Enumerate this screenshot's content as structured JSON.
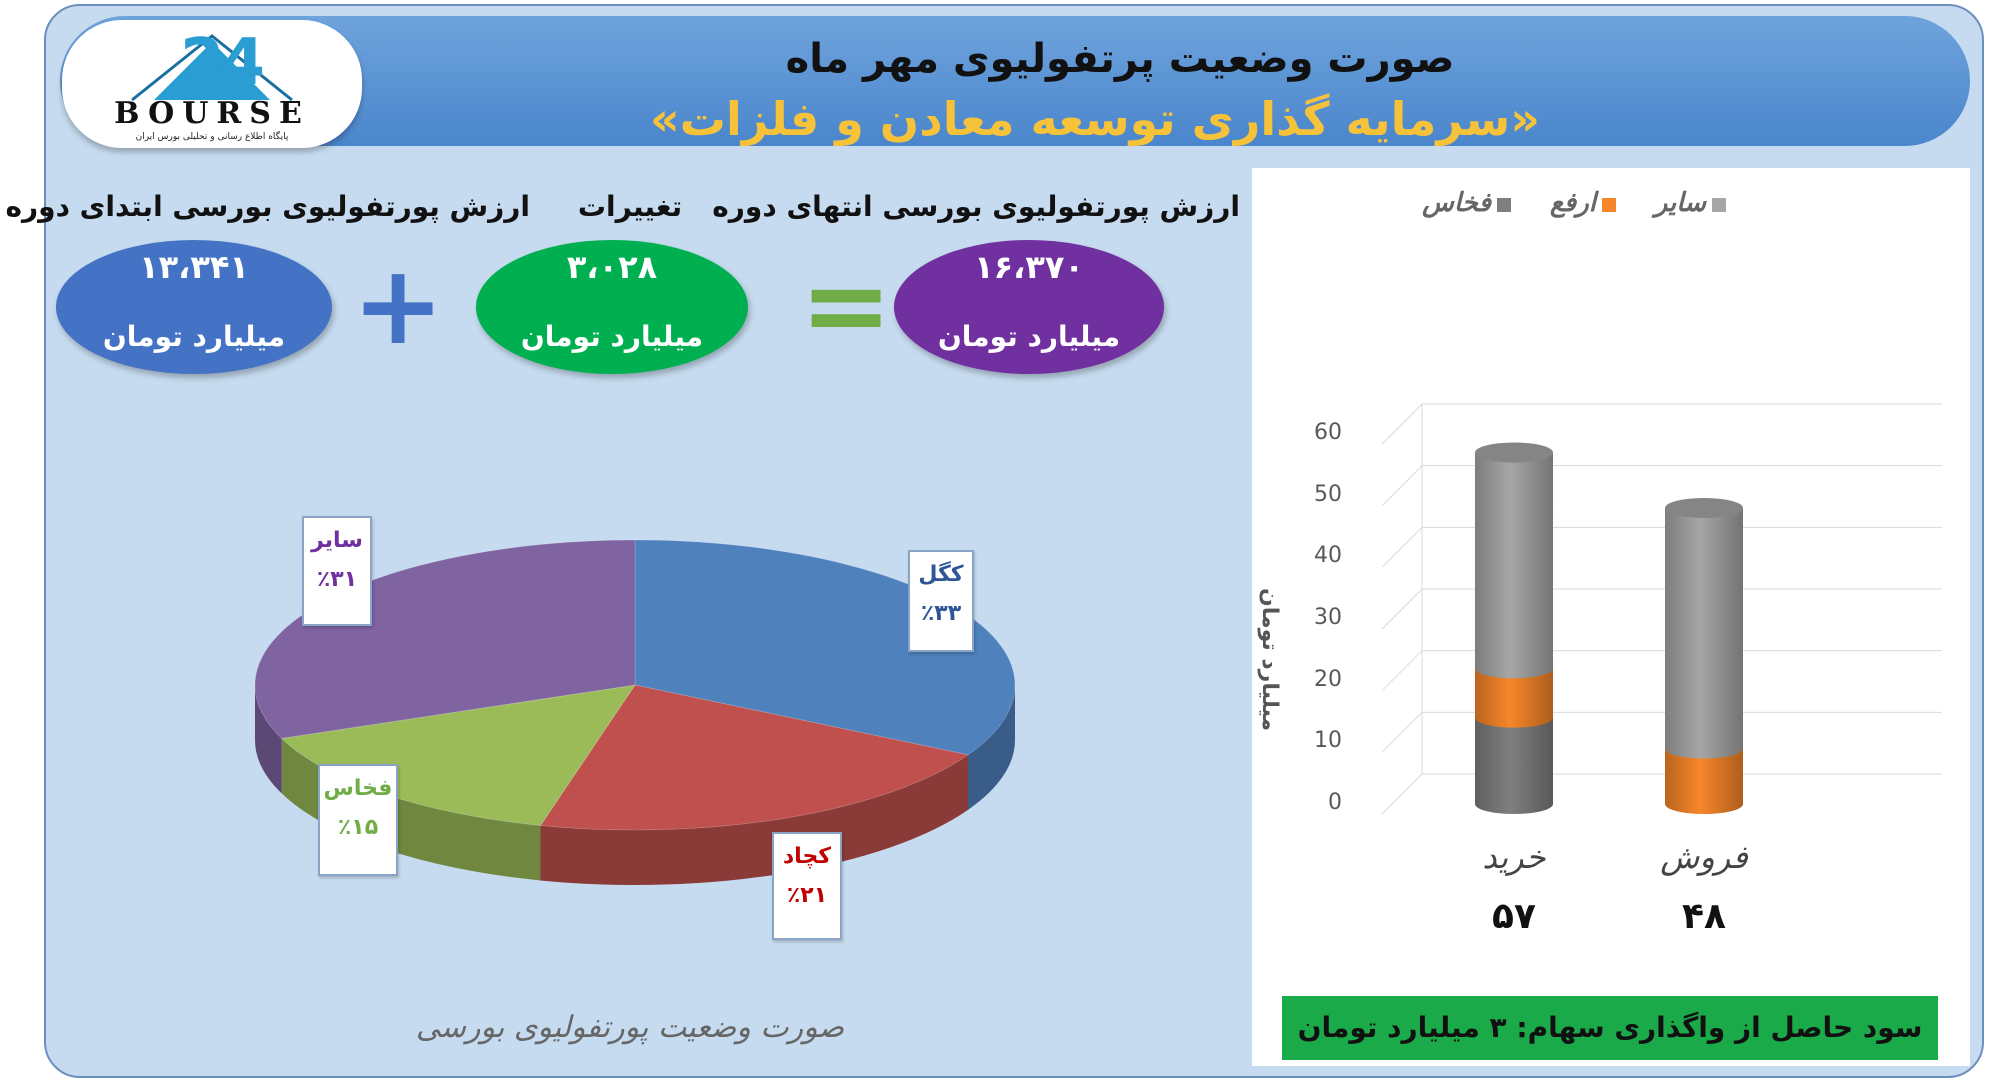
{
  "header": {
    "title_line1": "صورت وضعیت پرتفولیوی مهر ماه",
    "title_line2": "«سرمایه گذاری توسعه معادن و فلزات»"
  },
  "logo": {
    "number": "24",
    "word": "BOURSE",
    "tagline": "پایگاه اطلاع رسانی و تحلیلی بورس ایران"
  },
  "summary": {
    "start": {
      "label": "ارزش پورتفولیوی بورسی ابتدای دوره",
      "value": "۱۳،۳۴۱",
      "unit": "میلیارد تومان",
      "color": "#4472c4"
    },
    "change": {
      "label": "تغییرات",
      "value": "۳،۰۲۸",
      "unit": "میلیارد تومان",
      "color": "#00b050"
    },
    "end": {
      "label": "ارزش پورتفولیوی بورسی انتهای دوره",
      "value": "۱۶،۳۷۰",
      "unit": "میلیارد تومان",
      "color": "#7030a0"
    },
    "plus_sign": "+",
    "equals_sign": "=",
    "plus_color": "#4472c4",
    "equals_color": "#70ad47"
  },
  "pie": {
    "caption": "صورت وضعیت پورتفولیوی بورسی"
  },
  "bar": {
    "profit_text": "سود حاصل از واگذاری سهام: ۳ میلیارد تومان"
  },
  "chart_data": [
    {
      "type": "pie",
      "slices": [
        {
          "label": "کگل",
          "value": 33,
          "value_label": "٪۳۳",
          "color": "#4f81bd"
        },
        {
          "label": "کچاد",
          "value": 21,
          "value_label": "٪۲۱",
          "color": "#c0504d"
        },
        {
          "label": "فخاس",
          "value": 15,
          "value_label": "٪۱۵",
          "color": "#9bbb59"
        },
        {
          "label": "سایر",
          "value": 31,
          "value_label": "٪۳۱",
          "color": "#8064a2"
        }
      ],
      "title": "",
      "style": "3d"
    },
    {
      "type": "bar",
      "stacked": true,
      "style": "3d-cylinder",
      "categories": [
        "خرید",
        "فروش"
      ],
      "totals": [
        "۵۷",
        "۴۸"
      ],
      "series": [
        {
          "name": "فخاس",
          "values": [
            14,
            0
          ],
          "color": "#7f7f7f"
        },
        {
          "name": "ارفع",
          "values": [
            8,
            9
          ],
          "color": "#f7862a"
        },
        {
          "name": "سایر",
          "values": [
            35,
            39
          ],
          "color": "#a6a6a6"
        }
      ],
      "ylabel": "میلیارد تومان",
      "ylim": [
        0,
        60
      ],
      "yticks": [
        0,
        10,
        20,
        30,
        40,
        50,
        60
      ],
      "grid": true,
      "legend": "top"
    }
  ]
}
